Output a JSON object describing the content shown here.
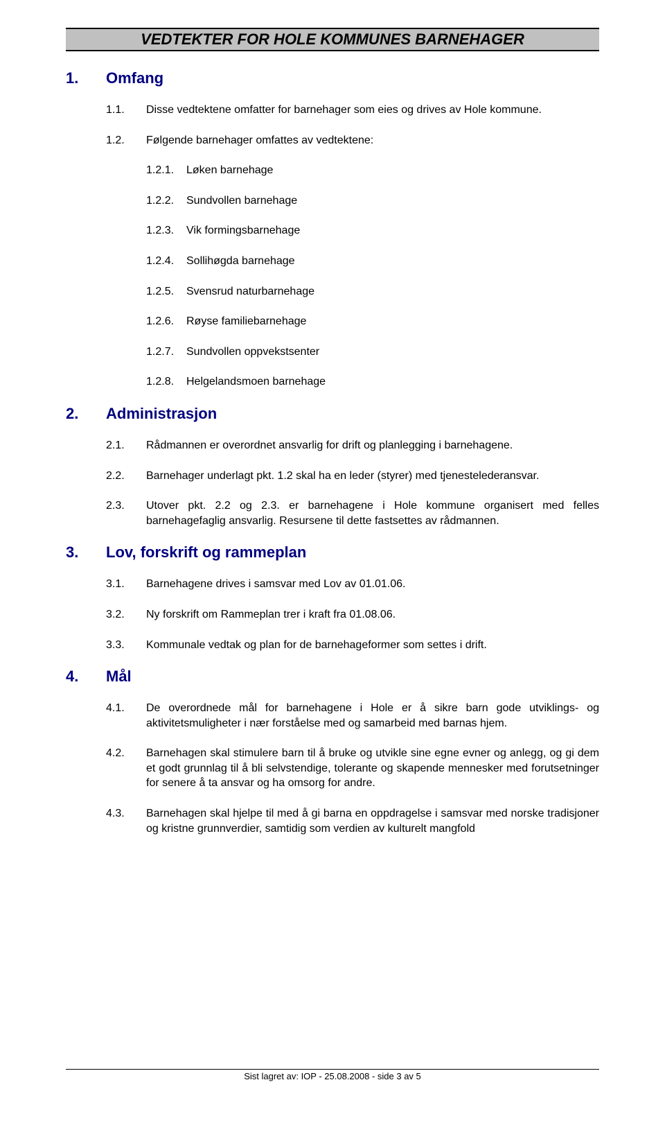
{
  "header": {
    "title": "VEDTEKTER FOR HOLE KOMMUNES BARNEHAGER"
  },
  "sections": [
    {
      "num": "1.",
      "title": "Omfang",
      "items": [
        {
          "num": "1.1.",
          "text": "Disse vedtektene omfatter for barnehager som eies og drives av Hole kommune."
        },
        {
          "num": "1.2.",
          "text": "Følgende barnehager omfattes av vedtektene:",
          "children": [
            {
              "num": "1.2.1.",
              "text": "Løken barnehage"
            },
            {
              "num": "1.2.2.",
              "text": "Sundvollen barnehage"
            },
            {
              "num": "1.2.3.",
              "text": "Vik formingsbarnehage"
            },
            {
              "num": "1.2.4.",
              "text": "Sollihøgda barnehage"
            },
            {
              "num": "1.2.5.",
              "text": "Svensrud naturbarnehage"
            },
            {
              "num": "1.2.6.",
              "text": "Røyse familiebarnehage"
            },
            {
              "num": "1.2.7.",
              "text": "Sundvollen oppvekstsenter"
            },
            {
              "num": "1.2.8.",
              "text": "Helgelandsmoen barnehage"
            }
          ]
        }
      ]
    },
    {
      "num": "2.",
      "title": "Administrasjon",
      "items": [
        {
          "num": "2.1.",
          "text": "Rådmannen er overordnet ansvarlig for drift og planlegging i barnehagene."
        },
        {
          "num": "2.2.",
          "text": "Barnehager underlagt pkt. 1.2 skal ha en leder (styrer) med tjenestelederansvar."
        },
        {
          "num": "2.3.",
          "text": "Utover pkt. 2.2 og 2.3. er barnehagene i  Hole kommune organisert med felles barnehagefaglig ansvarlig. Resursene til dette fastsettes av rådmannen."
        }
      ]
    },
    {
      "num": "3.",
      "title": "Lov, forskrift og rammeplan",
      "items": [
        {
          "num": "3.1.",
          "text": "Barnehagene drives i samsvar med Lov av 01.01.06."
        },
        {
          "num": "3.2.",
          "text": "Ny forskrift om Rammeplan trer i kraft fra 01.08.06."
        },
        {
          "num": "3.3.",
          "text": "Kommunale vedtak og plan for de barnehageformer som settes i drift."
        }
      ]
    },
    {
      "num": "4.",
      "title": "Mål",
      "items": [
        {
          "num": "4.1.",
          "text": "De overordnede mål for barnehagene i Hole er å sikre barn gode utviklings- og aktivitetsmuligheter i nær forståelse med og samarbeid med barnas hjem."
        },
        {
          "num": "4.2.",
          "text": "Barnehagen skal stimulere barn til å bruke og utvikle sine egne evner og anlegg, og gi dem et godt grunnlag til å bli selvstendige, tolerante og skapende mennesker med forutsetninger for senere å ta ansvar og ha omsorg for andre."
        },
        {
          "num": "4.3.",
          "text": "Barnehagen skal hjelpe til med å gi barna en oppdragelse i samsvar med norske tradisjoner og kristne grunnverdier, samtidig som verdien av kulturelt mangfold"
        }
      ]
    }
  ],
  "footer": {
    "text": "Sist lagret av: IOP - 25.08.2008 - side 3 av 5"
  }
}
